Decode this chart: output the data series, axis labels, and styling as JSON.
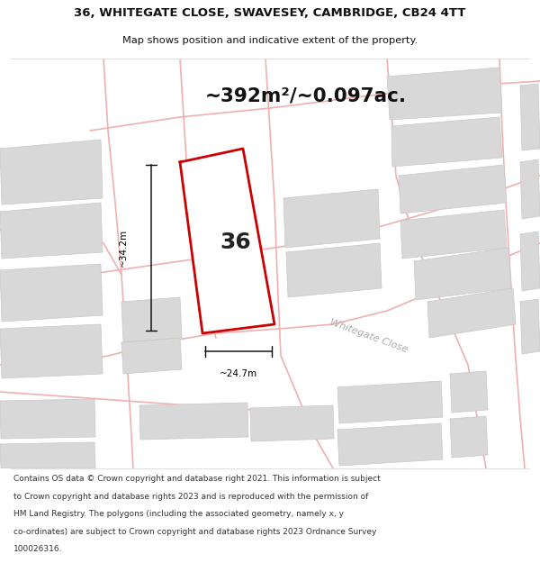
{
  "title_line1": "36, WHITEGATE CLOSE, SWAVESEY, CAMBRIDGE, CB24 4TT",
  "title_line2": "Map shows position and indicative extent of the property.",
  "area_text": "~392m²/~0.097ac.",
  "dim_vertical": "~34.2m",
  "dim_horizontal": "~24.7m",
  "property_number": "36",
  "street_name": "Whitegate Close",
  "footer_lines": [
    "Contains OS data © Crown copyright and database right 2021. This information is subject",
    "to Crown copyright and database rights 2023 and is reproduced with the permission of",
    "HM Land Registry. The polygons (including the associated geometry, namely x, y",
    "co-ordinates) are subject to Crown copyright and database rights 2023 Ordnance Survey",
    "100026316."
  ],
  "bg_color": "#ffffff",
  "map_bg": "#ffffff",
  "plot_outline_color": "#cc0000",
  "road_color": "#f0b0b0",
  "building_color": "#d8d8d8",
  "building_edge": "#c8c8c8",
  "title_color": "#111111",
  "street_label_color": "#aaaaaa",
  "header_sep_color": "#e0e0e0",
  "footer_sep_color": "#e0e0e0"
}
